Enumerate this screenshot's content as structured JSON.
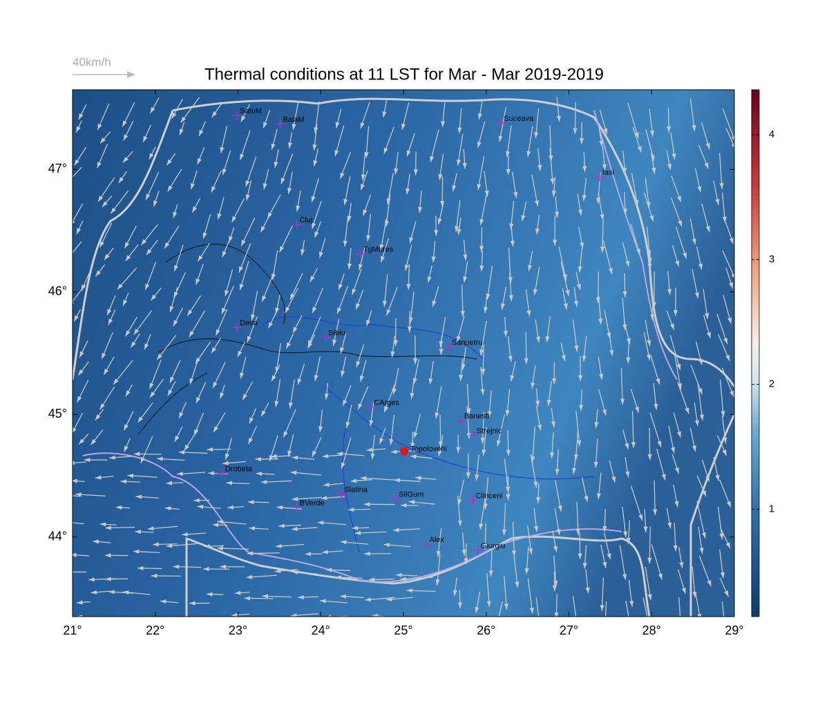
{
  "map": {
    "title": "Thermal conditions at 11 LST for Mar - Mar  2019-2019",
    "wind_legend": "40km/h",
    "xlim": [
      21,
      29
    ],
    "ylim": [
      43.35,
      47.65
    ],
    "xticks": [
      {
        "value": 21,
        "label": "21°"
      },
      {
        "value": 22,
        "label": "22°"
      },
      {
        "value": 23,
        "label": "23°"
      },
      {
        "value": 24,
        "label": "24°"
      },
      {
        "value": 25,
        "label": "25°"
      },
      {
        "value": 26,
        "label": "26°"
      },
      {
        "value": 27,
        "label": "27°"
      },
      {
        "value": 28,
        "label": "28°"
      },
      {
        "value": 29,
        "label": "29°"
      }
    ],
    "yticks": [
      {
        "value": 44,
        "label": "44°"
      },
      {
        "value": 45,
        "label": "45°"
      },
      {
        "value": 46,
        "label": "46°"
      },
      {
        "value": 47,
        "label": "47°"
      }
    ],
    "colorbar": {
      "lim": [
        0.14,
        4.36
      ],
      "ticks": [
        1,
        2,
        3,
        4
      ]
    },
    "cities": [
      {
        "name": "SatuM",
        "lon": 22.99,
        "lat": 47.44
      },
      {
        "name": "BaiaM",
        "lon": 23.51,
        "lat": 47.37
      },
      {
        "name": "Suceava",
        "lon": 26.18,
        "lat": 47.38
      },
      {
        "name": "Iasi",
        "lon": 27.37,
        "lat": 46.94
      },
      {
        "name": "Cluj",
        "lon": 23.71,
        "lat": 46.55
      },
      {
        "name": "TgMures",
        "lon": 24.48,
        "lat": 46.31
      },
      {
        "name": "Deva",
        "lon": 22.99,
        "lat": 45.71
      },
      {
        "name": "Sibiu",
        "lon": 24.06,
        "lat": 45.63
      },
      {
        "name": "Sanpetru",
        "lon": 25.55,
        "lat": 45.55
      },
      {
        "name": "CArges",
        "lon": 24.61,
        "lat": 45.06
      },
      {
        "name": "Banesti",
        "lon": 25.7,
        "lat": 44.95
      },
      {
        "name": "Strejnic",
        "lon": 25.85,
        "lat": 44.83
      },
      {
        "name": "Drobeta",
        "lon": 22.81,
        "lat": 44.52
      },
      {
        "name": "Slatina",
        "lon": 24.25,
        "lat": 44.35
      },
      {
        "name": "SilGum",
        "lon": 24.91,
        "lat": 44.31
      },
      {
        "name": "Clinceni",
        "lon": 25.84,
        "lat": 44.3
      },
      {
        "name": "BVerde",
        "lon": 23.71,
        "lat": 44.24
      },
      {
        "name": "Alex",
        "lon": 25.28,
        "lat": 43.94
      },
      {
        "name": "Giurgiu",
        "lon": 25.9,
        "lat": 43.89
      }
    ],
    "site": {
      "name": "Topoloveni",
      "lon": 25.01,
      "lat": 44.7
    }
  }
}
